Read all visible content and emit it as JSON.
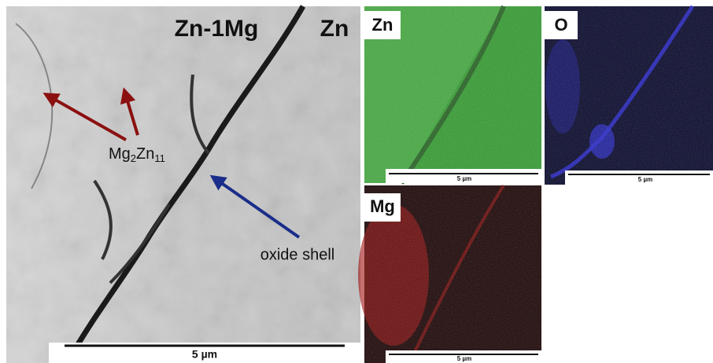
{
  "sem": {
    "labels": {
      "left": "Zn-1Mg",
      "right": "Zn"
    },
    "phase": {
      "parts": [
        "Mg",
        "2",
        "Zn",
        "11"
      ]
    },
    "oxide": "oxide shell",
    "scale": "5 µm"
  },
  "maps": [
    {
      "element": "Zn",
      "scale": "5 µm"
    },
    {
      "element": "O",
      "scale": "5 µm"
    },
    {
      "element": "Mg",
      "scale": "5 µm"
    }
  ]
}
